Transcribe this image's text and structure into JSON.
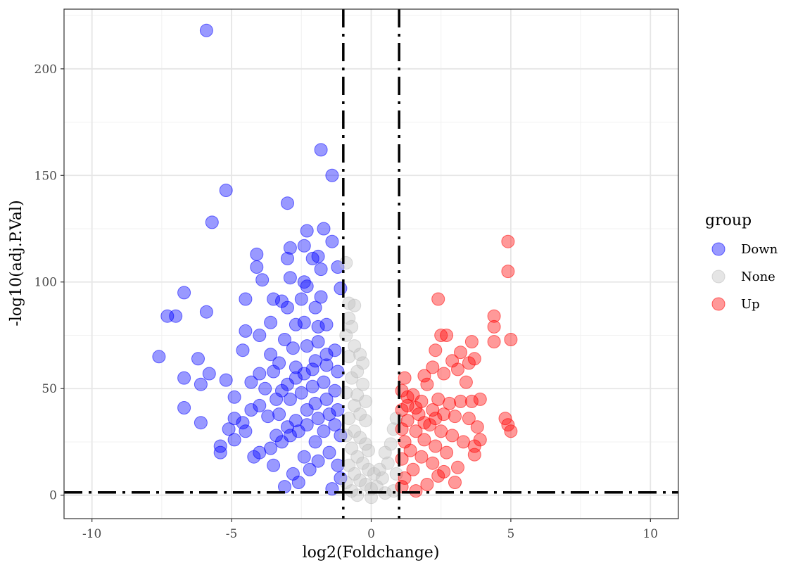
{
  "chart_data": {
    "type": "scatter",
    "title": "",
    "xlabel": "log2(Foldchange)",
    "ylabel": "-log10(adj.P.Val)",
    "xlim": [
      -11,
      11
    ],
    "ylim": [
      -11,
      228
    ],
    "x_ticks": [
      -10,
      -5,
      0,
      5,
      10
    ],
    "x_tick_labels": [
      "-10",
      "-5",
      "0",
      "5",
      "10"
    ],
    "y_ticks": [
      0,
      50,
      100,
      150,
      200
    ],
    "y_tick_labels": [
      "0",
      "50",
      "100",
      "150",
      "200"
    ],
    "grid": true,
    "thresholds": {
      "vertical": [
        -1,
        1
      ],
      "horizontal": [
        1.3
      ],
      "style": "dash-dot"
    },
    "legend": {
      "title": "group",
      "position": "right",
      "entries": [
        {
          "label": "Down",
          "color": "#0000ff"
        },
        {
          "label": "None",
          "color": "#bebebe"
        },
        {
          "label": "Up",
          "color": "#ff0000"
        }
      ]
    },
    "series": [
      {
        "name": "Down",
        "color": "#0000ff",
        "points": [
          [
            -5.9,
            218
          ],
          [
            -1.8,
            162
          ],
          [
            -1.4,
            150
          ],
          [
            -5.2,
            143
          ],
          [
            -3.0,
            137
          ],
          [
            -5.7,
            128
          ],
          [
            -2.3,
            124
          ],
          [
            -1.7,
            125
          ],
          [
            -1.4,
            119
          ],
          [
            -2.9,
            116
          ],
          [
            -2.4,
            117
          ],
          [
            -1.9,
            112
          ],
          [
            -2.1,
            111
          ],
          [
            -3.0,
            111
          ],
          [
            -4.1,
            113
          ],
          [
            -4.1,
            107
          ],
          [
            -1.8,
            106
          ],
          [
            -1.2,
            107
          ],
          [
            -3.9,
            101
          ],
          [
            -2.4,
            100
          ],
          [
            -2.9,
            102
          ],
          [
            -1.1,
            97
          ],
          [
            -6.7,
            95
          ],
          [
            -7.3,
            84
          ],
          [
            -7.0,
            84
          ],
          [
            -5.9,
            86
          ],
          [
            -4.5,
            92
          ],
          [
            -3.5,
            92
          ],
          [
            -3.2,
            91
          ],
          [
            -3.0,
            88
          ],
          [
            -2.3,
            98
          ],
          [
            -1.8,
            93
          ],
          [
            -2.0,
            88
          ],
          [
            -2.5,
            92
          ],
          [
            -3.6,
            81
          ],
          [
            -2.7,
            80
          ],
          [
            -2.4,
            81
          ],
          [
            -4.5,
            77
          ],
          [
            -4.0,
            75
          ],
          [
            -3.1,
            73
          ],
          [
            -1.9,
            79
          ],
          [
            -1.6,
            80
          ],
          [
            -7.6,
            65
          ],
          [
            -6.2,
            64
          ],
          [
            -6.7,
            55
          ],
          [
            -5.8,
            57
          ],
          [
            -6.1,
            52
          ],
          [
            -5.2,
            54
          ],
          [
            -4.6,
            68
          ],
          [
            -3.6,
            66
          ],
          [
            -3.3,
            62
          ],
          [
            -2.8,
            69
          ],
          [
            -2.3,
            70
          ],
          [
            -1.9,
            72
          ],
          [
            -1.3,
            68
          ],
          [
            -6.7,
            41
          ],
          [
            -6.1,
            34
          ],
          [
            -4.9,
            46
          ],
          [
            -4.3,
            53
          ],
          [
            -4.0,
            57
          ],
          [
            -3.5,
            58
          ],
          [
            -3.8,
            50
          ],
          [
            -3.2,
            49
          ],
          [
            -2.7,
            60
          ],
          [
            -2.1,
            59
          ],
          [
            -1.6,
            61
          ],
          [
            -1.2,
            58
          ],
          [
            -5.1,
            31
          ],
          [
            -4.9,
            36
          ],
          [
            -4.6,
            34
          ],
          [
            -4.3,
            40
          ],
          [
            -4.0,
            42
          ],
          [
            -3.7,
            37
          ],
          [
            -3.3,
            38
          ],
          [
            -2.9,
            45
          ],
          [
            -2.5,
            48
          ],
          [
            -2.1,
            51
          ],
          [
            -1.7,
            53
          ],
          [
            -1.3,
            49
          ],
          [
            -5.4,
            23
          ],
          [
            -5.4,
            20
          ],
          [
            -4.9,
            26
          ],
          [
            -4.5,
            30
          ],
          [
            -4.2,
            18
          ],
          [
            -4.0,
            20
          ],
          [
            -3.6,
            22
          ],
          [
            -3.4,
            28
          ],
          [
            -3.0,
            32
          ],
          [
            -2.7,
            35
          ],
          [
            -2.3,
            40
          ],
          [
            -2.0,
            43
          ],
          [
            -1.6,
            45
          ],
          [
            -1.2,
            40
          ],
          [
            -3.1,
            4
          ],
          [
            -3.5,
            14
          ],
          [
            -2.8,
            10
          ],
          [
            -2.4,
            18
          ],
          [
            -2.0,
            25
          ],
          [
            -1.7,
            30
          ],
          [
            -1.3,
            33
          ],
          [
            -1.1,
            28
          ],
          [
            -2.6,
            6
          ],
          [
            -2.2,
            12
          ],
          [
            -1.9,
            16
          ],
          [
            -1.5,
            20
          ],
          [
            -1.2,
            14
          ],
          [
            -1.1,
            8
          ],
          [
            -1.4,
            3
          ],
          [
            -3.2,
            25
          ],
          [
            -2.9,
            28
          ],
          [
            -2.6,
            30
          ],
          [
            -2.3,
            33
          ],
          [
            -1.9,
            36
          ],
          [
            -1.5,
            38
          ],
          [
            -3.4,
            45
          ],
          [
            -3.0,
            52
          ],
          [
            -2.7,
            55
          ],
          [
            -2.4,
            57
          ],
          [
            -2.0,
            63
          ],
          [
            -1.6,
            66
          ]
        ]
      },
      {
        "name": "None",
        "color": "#bebebe",
        "points": [
          [
            -0.9,
            109
          ],
          [
            -0.8,
            90
          ],
          [
            -0.6,
            89
          ],
          [
            -0.8,
            83
          ],
          [
            -0.7,
            79
          ],
          [
            -0.9,
            75
          ],
          [
            -0.6,
            70
          ],
          [
            -0.4,
            66
          ],
          [
            -0.3,
            62
          ],
          [
            -0.8,
            65
          ],
          [
            -0.5,
            58
          ],
          [
            -0.3,
            52
          ],
          [
            -0.7,
            55
          ],
          [
            -0.5,
            47
          ],
          [
            -0.2,
            44
          ],
          [
            -0.6,
            42
          ],
          [
            -0.4,
            38
          ],
          [
            -0.2,
            35
          ],
          [
            -0.8,
            36
          ],
          [
            -0.6,
            30
          ],
          [
            -0.4,
            27
          ],
          [
            -0.2,
            24
          ],
          [
            -0.1,
            21
          ],
          [
            -0.7,
            22
          ],
          [
            -0.5,
            18
          ],
          [
            -0.3,
            15
          ],
          [
            -0.1,
            12
          ],
          [
            0.1,
            10
          ],
          [
            -0.8,
            14
          ],
          [
            -0.6,
            10
          ],
          [
            -0.4,
            7
          ],
          [
            -0.2,
            5
          ],
          [
            0.0,
            3
          ],
          [
            0.2,
            4
          ],
          [
            0.4,
            8
          ],
          [
            0.6,
            15
          ],
          [
            0.7,
            24
          ],
          [
            0.8,
            31
          ],
          [
            0.9,
            36
          ],
          [
            0.5,
            20
          ],
          [
            0.3,
            12
          ],
          [
            -0.9,
            48
          ],
          [
            -0.9,
            28
          ],
          [
            -0.9,
            6
          ],
          [
            -0.7,
            2
          ],
          [
            -0.5,
            0
          ],
          [
            0.0,
            -1
          ],
          [
            0.5,
            1
          ],
          [
            0.8,
            2
          ],
          [
            0.9,
            10
          ]
        ]
      },
      {
        "name": "Up",
        "color": "#ff0000",
        "points": [
          [
            4.9,
            119
          ],
          [
            4.9,
            105
          ],
          [
            2.4,
            92
          ],
          [
            4.4,
            84
          ],
          [
            4.4,
            79
          ],
          [
            2.5,
            75
          ],
          [
            2.7,
            75
          ],
          [
            4.4,
            72
          ],
          [
            5.0,
            73
          ],
          [
            3.6,
            72
          ],
          [
            3.2,
            67
          ],
          [
            2.3,
            68
          ],
          [
            3.7,
            64
          ],
          [
            3.5,
            62
          ],
          [
            2.9,
            63
          ],
          [
            3.1,
            59
          ],
          [
            2.2,
            60
          ],
          [
            1.2,
            55
          ],
          [
            1.9,
            56
          ],
          [
            2.6,
            57
          ],
          [
            3.4,
            53
          ],
          [
            2.0,
            52
          ],
          [
            1.1,
            49
          ],
          [
            1.5,
            47
          ],
          [
            3.9,
            45
          ],
          [
            3.6,
            44
          ],
          [
            3.2,
            44
          ],
          [
            2.8,
            43
          ],
          [
            2.4,
            45
          ],
          [
            1.8,
            44
          ],
          [
            1.3,
            42
          ],
          [
            1.1,
            40
          ],
          [
            4.8,
            36
          ],
          [
            4.9,
            33
          ],
          [
            5.0,
            30
          ],
          [
            3.8,
            32
          ],
          [
            3.5,
            36
          ],
          [
            3.0,
            37
          ],
          [
            2.6,
            38
          ],
          [
            2.2,
            40
          ],
          [
            1.7,
            38
          ],
          [
            1.3,
            35
          ],
          [
            1.1,
            31
          ],
          [
            3.9,
            26
          ],
          [
            3.7,
            23
          ],
          [
            3.3,
            25
          ],
          [
            2.9,
            28
          ],
          [
            2.5,
            30
          ],
          [
            2.1,
            33
          ],
          [
            1.6,
            30
          ],
          [
            1.2,
            25
          ],
          [
            3.7,
            19
          ],
          [
            3.1,
            13
          ],
          [
            2.7,
            20
          ],
          [
            2.3,
            23
          ],
          [
            1.9,
            26
          ],
          [
            1.4,
            21
          ],
          [
            1.1,
            17
          ],
          [
            3.0,
            6
          ],
          [
            2.6,
            11
          ],
          [
            2.2,
            15
          ],
          [
            1.8,
            18
          ],
          [
            1.5,
            12
          ],
          [
            1.2,
            8
          ],
          [
            1.1,
            4
          ],
          [
            1.6,
            2
          ],
          [
            2.0,
            5
          ],
          [
            2.4,
            9
          ],
          [
            1.9,
            34
          ],
          [
            2.3,
            36
          ],
          [
            1.6,
            41
          ],
          [
            1.3,
            46
          ]
        ]
      }
    ]
  }
}
